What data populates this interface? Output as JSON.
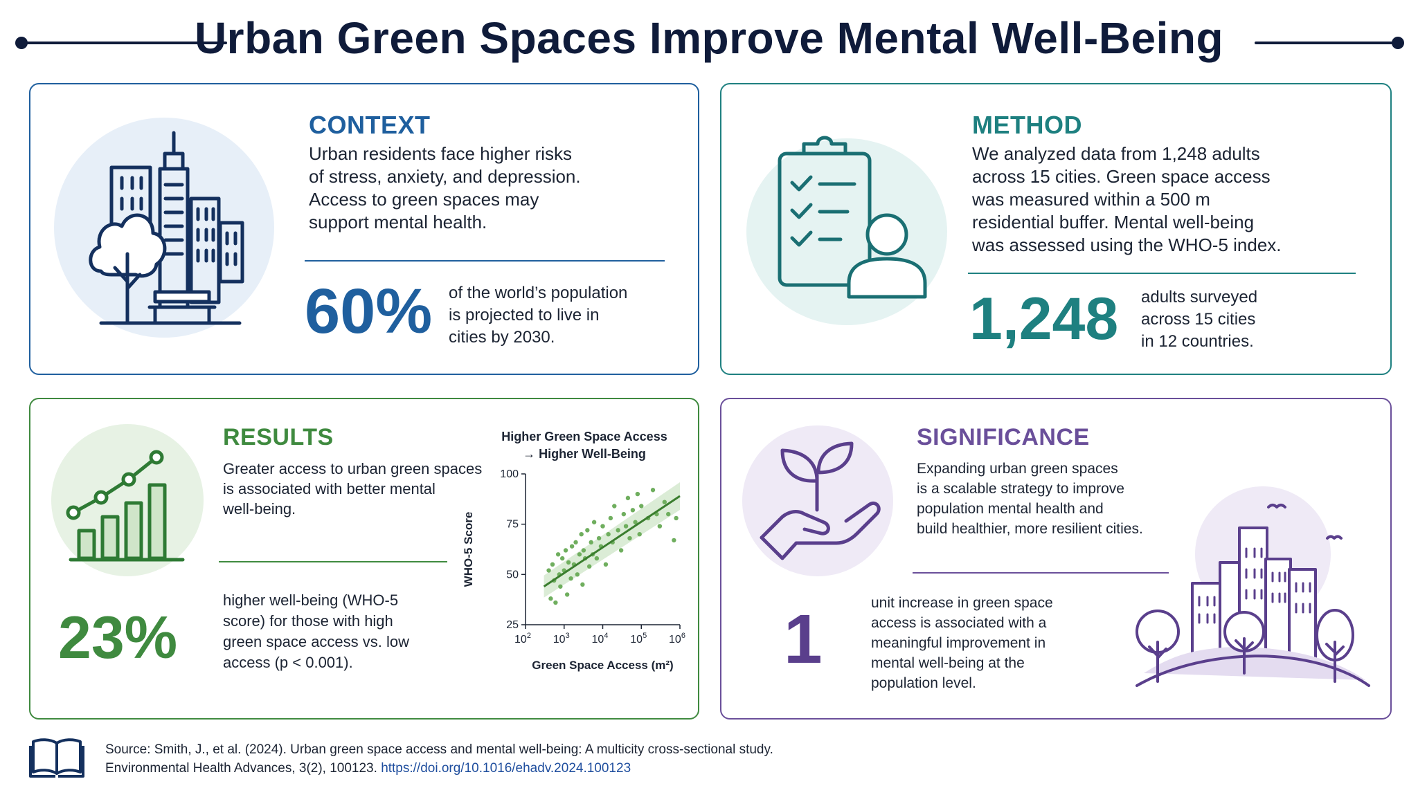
{
  "title": "Urban Green Spaces Improve Mental Well-Being",
  "colors": {
    "navy": "#0f1b3a",
    "context": "#1f5f9e",
    "method": "#1e8080",
    "results": "#3f8a3f",
    "significance": "#6a4f9a"
  },
  "context": {
    "heading": "CONTEXT",
    "text": [
      "Urban residents face higher risks",
      "of stress, anxiety, and depression.",
      "Access to green spaces may",
      "support mental health."
    ],
    "stat": "60%",
    "stat_desc": [
      "of the world’s population",
      "is projected to live in",
      "cities by 2030."
    ],
    "icon": "city-park-icon"
  },
  "method": {
    "heading": "METHOD",
    "text": [
      "We analyzed data from 1,248 adults",
      "across 15 cities. Green space access",
      "was measured within a 500 m",
      "residential buffer. Mental well-being",
      "was assessed using the WHO-5 index."
    ],
    "stat": "1,248",
    "stat_desc": [
      "adults surveyed",
      "across 15 cities",
      "in 12 countries."
    ],
    "icon": "clipboard-person-icon"
  },
  "results": {
    "heading": "RESULTS",
    "text": [
      "Greater access to urban green spaces",
      "is associated with better mental",
      "well-being."
    ],
    "stat": "23%",
    "stat_desc": [
      "higher well-being (WHO-5",
      "score) for those with high",
      "green space access vs. low",
      "access (p < 0.001)."
    ],
    "icon": "bar-chart-trend-icon"
  },
  "significance": {
    "heading": "SIGNIFICANCE",
    "text": [
      "Expanding urban green spaces",
      "is a scalable strategy to improve",
      "population mental health and",
      "build healthier, more resilient cities."
    ],
    "stat": "1",
    "stat_desc": [
      "unit increase in green space",
      "access is associated with a",
      "meaningful improvement in",
      "mental well-being at the",
      "population level."
    ],
    "icon": "hand-plant-icon"
  },
  "chart_data": {
    "type": "scatter",
    "title": [
      "Higher Green Space Access",
      "→ Higher Well-Being"
    ],
    "xlabel": "Green Space Access (m²)",
    "ylabel": "WHO-5 Score",
    "x_scale": "log",
    "xlim": [
      100,
      1000000
    ],
    "ylim": [
      25,
      100
    ],
    "x_ticks": [
      {
        "value": 100,
        "base": "10",
        "exp": "2"
      },
      {
        "value": 1000,
        "base": "10",
        "exp": "3"
      },
      {
        "value": 10000,
        "base": "10",
        "exp": "4"
      },
      {
        "value": 100000,
        "base": "10",
        "exp": "5"
      },
      {
        "value": 1000000,
        "base": "10",
        "exp": "6"
      }
    ],
    "y_ticks": [
      25,
      50,
      75,
      100
    ],
    "trend_line": {
      "x": [
        300,
        1000000
      ],
      "y": [
        44,
        89
      ]
    },
    "points": [
      [
        400,
        52
      ],
      [
        450,
        38
      ],
      [
        500,
        55
      ],
      [
        550,
        47
      ],
      [
        600,
        36
      ],
      [
        700,
        60
      ],
      [
        750,
        50
      ],
      [
        800,
        44
      ],
      [
        900,
        58
      ],
      [
        1000,
        52
      ],
      [
        1100,
        62
      ],
      [
        1200,
        40
      ],
      [
        1300,
        56
      ],
      [
        1500,
        48
      ],
      [
        1600,
        64
      ],
      [
        1800,
        55
      ],
      [
        2000,
        66
      ],
      [
        2200,
        50
      ],
      [
        2500,
        60
      ],
      [
        2800,
        70
      ],
      [
        3000,
        45
      ],
      [
        3200,
        62
      ],
      [
        3500,
        58
      ],
      [
        4000,
        72
      ],
      [
        4500,
        54
      ],
      [
        5000,
        66
      ],
      [
        5500,
        60
      ],
      [
        6000,
        76
      ],
      [
        7000,
        58
      ],
      [
        8000,
        68
      ],
      [
        9000,
        64
      ],
      [
        10000,
        74
      ],
      [
        12000,
        55
      ],
      [
        14000,
        70
      ],
      [
        16000,
        78
      ],
      [
        18000,
        66
      ],
      [
        20000,
        84
      ],
      [
        25000,
        72
      ],
      [
        30000,
        62
      ],
      [
        35000,
        80
      ],
      [
        40000,
        74
      ],
      [
        45000,
        88
      ],
      [
        50000,
        68
      ],
      [
        60000,
        82
      ],
      [
        70000,
        76
      ],
      [
        80000,
        90
      ],
      [
        90000,
        70
      ],
      [
        100000,
        84
      ],
      [
        150000,
        78
      ],
      [
        200000,
        92
      ],
      [
        250000,
        80
      ],
      [
        300000,
        74
      ],
      [
        400000,
        86
      ],
      [
        500000,
        80
      ],
      [
        700000,
        67
      ],
      [
        800000,
        78
      ]
    ]
  },
  "source": {
    "line1": "Source: Smith, J., et al. (2024). Urban green space access and mental well-being: A multicity cross-sectional study.",
    "line2_prefix": "Environmental Health Advances, 3(2), 100123. ",
    "doi": "https://doi.org/10.1016/ehadv.2024.100123",
    "icon": "book-icon"
  }
}
